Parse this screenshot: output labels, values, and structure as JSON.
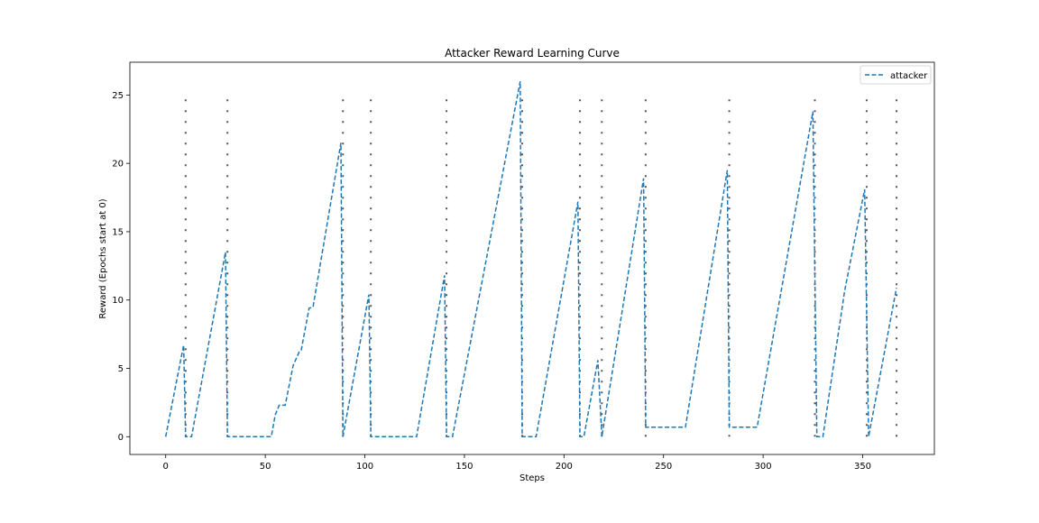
{
  "chart_data": {
    "type": "line",
    "title": "Attacker Reward Learning Curve",
    "xlabel": "Steps",
    "ylabel": "Reward (Epochs start at 0)",
    "xlim": [
      -18,
      386
    ],
    "ylim": [
      -1.3,
      27.4
    ],
    "xticks": [
      0,
      50,
      100,
      150,
      200,
      250,
      300,
      350
    ],
    "yticks": [
      0,
      5,
      10,
      15,
      20,
      25
    ],
    "grid": false,
    "legend_position": "top-right",
    "colors": {
      "attacker": "#1f77b4",
      "epoch_lines": "#555555"
    },
    "series": [
      {
        "name": "attacker",
        "style": "dashed",
        "points": [
          [
            0,
            0
          ],
          [
            9,
            6.7
          ],
          [
            10,
            0
          ],
          [
            13,
            0
          ],
          [
            30,
            13.5
          ],
          [
            31,
            0
          ],
          [
            53,
            0
          ],
          [
            55,
            1.6
          ],
          [
            57,
            2.3
          ],
          [
            60,
            2.3
          ],
          [
            64,
            5.2
          ],
          [
            67,
            6.2
          ],
          [
            68,
            6.3
          ],
          [
            72,
            9.4
          ],
          [
            74,
            9.5
          ],
          [
            88,
            21.5
          ],
          [
            89,
            0
          ],
          [
            102,
            10.4
          ],
          [
            103,
            0
          ],
          [
            126,
            0
          ],
          [
            140,
            11.8
          ],
          [
            141,
            0
          ],
          [
            144,
            0
          ],
          [
            178,
            26.0
          ],
          [
            179,
            0
          ],
          [
            186,
            0
          ],
          [
            207,
            17.2
          ],
          [
            208,
            0
          ],
          [
            210,
            0
          ],
          [
            217,
            5.6
          ],
          [
            219,
            0
          ],
          [
            240,
            18.9
          ],
          [
            241,
            0.7
          ],
          [
            261,
            0.7
          ],
          [
            282,
            19.5
          ],
          [
            283,
            0.7
          ],
          [
            297,
            0.7
          ],
          [
            325,
            23.8
          ],
          [
            327,
            0
          ],
          [
            330,
            0
          ],
          [
            341,
            10.7
          ],
          [
            351,
            18.1
          ],
          [
            353,
            0
          ],
          [
            367,
            10.9
          ]
        ]
      }
    ],
    "epoch_starts": [
      10,
      31,
      89,
      103,
      141,
      179,
      208,
      219,
      241,
      283,
      326,
      352,
      367
    ],
    "epoch_line_range": [
      0,
      25
    ]
  }
}
